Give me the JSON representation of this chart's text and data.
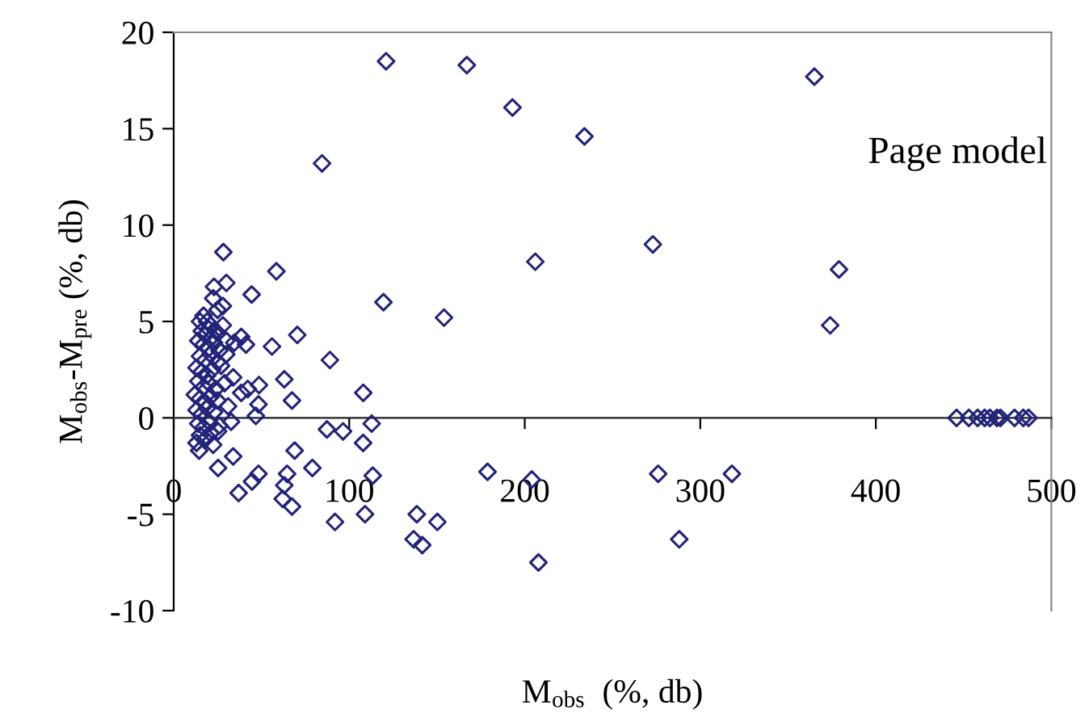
{
  "chart_data": {
    "type": "scatter",
    "xlabel": "M$_{obs}$  (%, db)",
    "ylabel": "M$_{obs}$-M$_{pre}$ (%, db)",
    "annotations": [
      "Page model"
    ],
    "marker": "diamond",
    "grid": false,
    "legend": false,
    "xlim": [
      0,
      500
    ],
    "xticks": [
      0,
      100,
      200,
      300,
      400,
      500
    ],
    "ylim": [
      -10,
      20
    ],
    "yticks": [
      -10,
      -5,
      0,
      5,
      10,
      15,
      20
    ],
    "series": [
      {
        "color": "#23237a",
        "x": [
          121,
          167,
          193,
          84.5,
          206,
          28.3,
          234,
          365,
          273,
          379,
          374,
          276,
          318,
          288,
          58.5,
          30,
          23,
          22.5,
          44.4,
          119.5,
          154,
          70.4,
          56,
          89,
          38.5,
          41.2,
          63,
          48.6,
          108,
          67.4,
          48.3,
          46.8,
          33.9,
          42.2,
          32.7,
          112.8,
          87.3,
          96.5,
          107.9,
          68.9,
          33.9,
          79,
          48.3,
          64.6,
          44.6,
          63,
          25.3,
          37,
          62.1,
          67.4,
          113.4,
          178.8,
          204,
          91.9,
          109,
          138.5,
          150.2,
          136.7,
          141.6,
          207.8,
          14.5,
          22.5,
          25.3,
          34.5,
          30,
          38.5,
          446,
          453,
          458,
          462,
          465,
          469,
          471,
          479,
          484,
          487,
          15,
          17,
          19,
          21,
          16,
          18,
          20,
          22,
          24,
          14,
          17,
          20,
          23,
          26,
          15,
          18,
          21,
          25,
          28,
          13,
          16,
          19,
          22,
          27,
          14,
          17,
          20,
          24,
          12,
          15,
          18,
          21,
          25,
          13,
          16,
          19,
          23,
          14,
          17,
          20,
          26,
          15,
          18,
          21,
          13,
          28,
          25,
          30,
          29,
          31
        ],
        "values": [
          18.5,
          18.3,
          16.1,
          13.2,
          8.1,
          8.6,
          14.6,
          17.7,
          9.0,
          7.7,
          4.8,
          -2.9,
          -2.9,
          -6.3,
          7.6,
          7.0,
          6.8,
          6.2,
          6.4,
          6.0,
          5.2,
          4.3,
          3.7,
          3.0,
          4.2,
          3.8,
          2.0,
          1.7,
          1.3,
          0.9,
          0.7,
          0.1,
          2.1,
          1.5,
          -0.2,
          -0.3,
          -0.6,
          -0.7,
          -1.3,
          -1.7,
          -2.0,
          -2.6,
          -2.9,
          -2.9,
          -3.3,
          -3.5,
          -2.6,
          -3.9,
          -4.2,
          -4.6,
          -3.0,
          -2.8,
          -3.2,
          -5.4,
          -5.0,
          -5.0,
          -5.4,
          -6.3,
          -6.6,
          -7.5,
          -1.7,
          -1.4,
          -0.7,
          3.9,
          3.3,
          1.3,
          0,
          0,
          0,
          0,
          0,
          0,
          0,
          0,
          0,
          0,
          5.0,
          5.3,
          5.0,
          4.8,
          4.5,
          4.3,
          4.6,
          4.2,
          4.5,
          4.0,
          3.8,
          3.6,
          3.9,
          3.5,
          3.2,
          3.0,
          3.3,
          2.9,
          4.8,
          2.6,
          2.4,
          2.2,
          2.5,
          2.7,
          1.9,
          1.6,
          1.8,
          1.5,
          1.2,
          1.0,
          0.8,
          1.1,
          0.9,
          0.4,
          0.2,
          0.5,
          0.3,
          -0.3,
          -0.5,
          -0.2,
          -0.4,
          -0.9,
          -1.1,
          -0.8,
          -1.3,
          5.8,
          5.6,
          4.0,
          1.8,
          0.6
        ]
      }
    ]
  }
}
